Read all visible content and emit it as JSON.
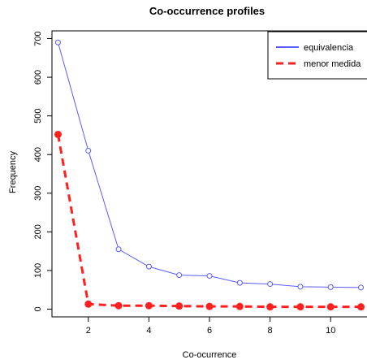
{
  "chart_data": {
    "type": "line",
    "title": "Co-occurrence profiles",
    "xlabel": "Co-ocurrence",
    "ylabel": "Frequency",
    "xlim": [
      0.8,
      11.2
    ],
    "ylim": [
      -20,
      720
    ],
    "xticks": [
      2,
      4,
      6,
      8,
      10
    ],
    "yticks": [
      0,
      100,
      200,
      300,
      400,
      500,
      600,
      700
    ],
    "grid": false,
    "legend_position": "top-right",
    "x": [
      1,
      2,
      3,
      4,
      5,
      6,
      7,
      8,
      9,
      10,
      11
    ],
    "series": [
      {
        "name": "equivalencia",
        "color": "#5b5bff",
        "line_style": "solid",
        "marker": "open-circle",
        "values": [
          690,
          410,
          155,
          110,
          88,
          86,
          68,
          65,
          58,
          57,
          56
        ]
      },
      {
        "name": "menor medida",
        "color": "#ff2020",
        "line_style": "dashed",
        "marker": "filled-circle",
        "values": [
          452,
          13,
          9,
          9,
          8,
          7,
          7,
          6,
          6,
          6,
          6
        ]
      }
    ]
  }
}
